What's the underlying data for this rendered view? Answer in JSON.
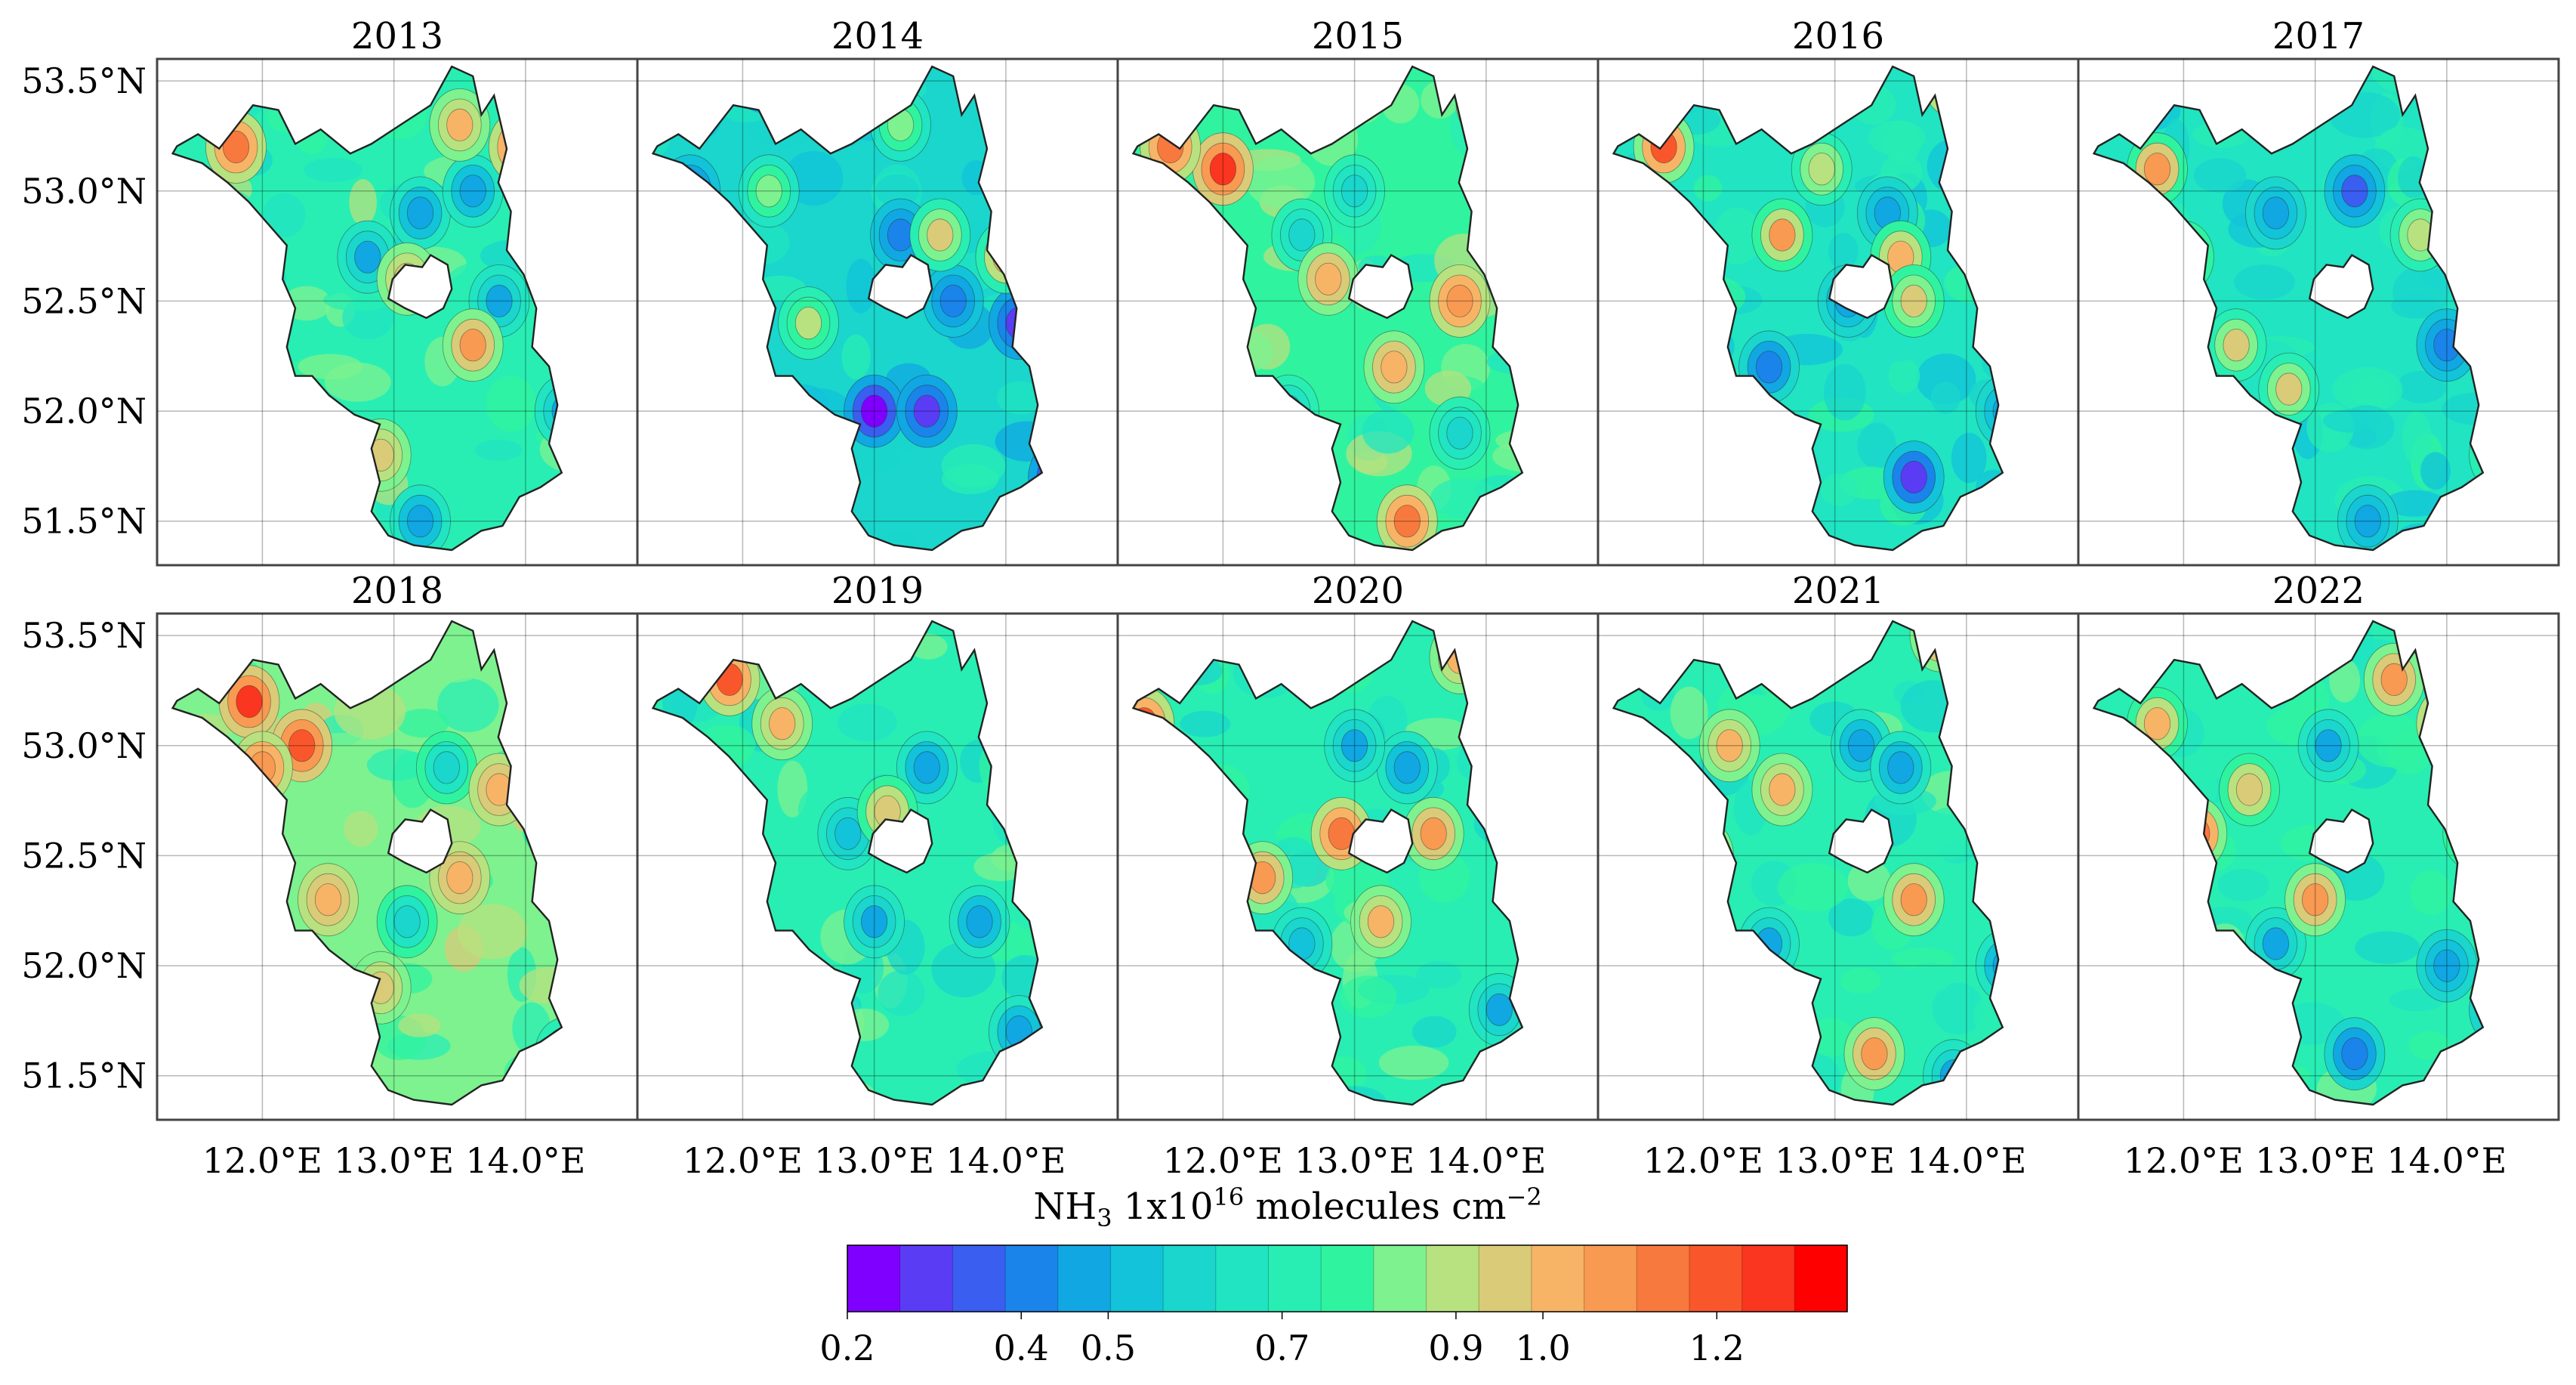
{
  "chart_data": {
    "type": "heatmap",
    "title": "",
    "colorbar": {
      "label_main": "NH",
      "label_sub": "3",
      "label_coef": " 1x10",
      "label_exp": "16",
      "label_unit": " molecules cm",
      "label_unit_exp": "−2",
      "ticks": [
        "0.2",
        "0.4",
        "0.5",
        "0.7",
        "0.9",
        "1.0",
        "1.2"
      ],
      "tick_values": [
        0.2,
        0.4,
        0.5,
        0.7,
        0.9,
        1.0,
        1.2
      ],
      "range": [
        0.2,
        1.35
      ],
      "colors": [
        "#7f00ff",
        "#5b3cf5",
        "#3a5ef0",
        "#1a84ea",
        "#10a7e3",
        "#12c3d9",
        "#1ad6cc",
        "#20e4c2",
        "#28eeb3",
        "#30f39f",
        "#7df28f",
        "#b7e27f",
        "#d9cb78",
        "#f7b466",
        "#f89a52",
        "#f8793e",
        "#f9572b",
        "#fa3520",
        "#ff0000"
      ]
    },
    "x_ticks": [
      "12.0°E",
      "13.0°E",
      "14.0°E"
    ],
    "y_ticks": [
      "53.5°N",
      "53.0°N",
      "52.5°N",
      "52.0°N",
      "51.5°N"
    ],
    "axis_ranges": {
      "lon": [
        11.2,
        14.85
      ],
      "lat": [
        51.3,
        53.6
      ]
    },
    "panels": [
      {
        "year": "2013",
        "mean": 0.74,
        "hotspots": [
          [
            11.8,
            53.2,
            1.15
          ],
          [
            13.95,
            53.2,
            1.2
          ],
          [
            14.3,
            52.7,
            1.05
          ],
          [
            13.1,
            52.6,
            0.95
          ],
          [
            13.6,
            52.3,
            1.05
          ],
          [
            12.9,
            51.8,
            0.95
          ],
          [
            13.5,
            53.3,
            1.0
          ]
        ],
        "coldspots": [
          [
            13.2,
            52.9,
            0.45
          ],
          [
            13.6,
            53.0,
            0.45
          ],
          [
            13.2,
            51.5,
            0.45
          ],
          [
            12.8,
            52.7,
            0.5
          ],
          [
            14.3,
            52.0,
            0.5
          ],
          [
            13.8,
            52.5,
            0.5
          ]
        ]
      },
      {
        "year": "2014",
        "mean": 0.6,
        "hotspots": [
          [
            13.5,
            52.8,
            0.95
          ],
          [
            12.2,
            53.0,
            0.85
          ],
          [
            14.0,
            52.7,
            1.0
          ],
          [
            12.5,
            52.4,
            0.9
          ],
          [
            13.2,
            53.3,
            0.85
          ]
        ],
        "coldspots": [
          [
            13.0,
            52.0,
            0.25
          ],
          [
            13.4,
            52.0,
            0.3
          ],
          [
            14.4,
            51.7,
            0.25
          ],
          [
            14.1,
            52.4,
            0.3
          ],
          [
            13.2,
            52.8,
            0.4
          ],
          [
            11.6,
            53.0,
            0.45
          ],
          [
            13.6,
            52.5,
            0.4
          ]
        ]
      },
      {
        "year": "2015",
        "mean": 0.78,
        "hotspots": [
          [
            12.0,
            53.1,
            1.25
          ],
          [
            11.6,
            53.2,
            1.15
          ],
          [
            13.8,
            52.5,
            1.1
          ],
          [
            13.4,
            51.5,
            1.15
          ],
          [
            14.0,
            53.4,
            1.05
          ],
          [
            11.9,
            52.5,
            1.1
          ],
          [
            12.8,
            52.6,
            1.0
          ],
          [
            13.3,
            52.2,
            1.0
          ]
        ],
        "coldspots": [
          [
            12.5,
            52.0,
            0.55
          ],
          [
            13.0,
            53.0,
            0.6
          ],
          [
            13.8,
            51.9,
            0.6
          ],
          [
            12.6,
            52.8,
            0.6
          ]
        ]
      },
      {
        "year": "2016",
        "mean": 0.66,
        "hotspots": [
          [
            13.9,
            53.5,
            1.3
          ],
          [
            11.7,
            53.2,
            1.2
          ],
          [
            12.6,
            52.8,
            1.05
          ],
          [
            13.5,
            52.7,
            1.0
          ],
          [
            13.6,
            52.5,
            0.95
          ],
          [
            12.9,
            53.1,
            0.9
          ]
        ],
        "coldspots": [
          [
            13.6,
            51.7,
            0.3
          ],
          [
            12.5,
            52.2,
            0.4
          ],
          [
            13.4,
            52.9,
            0.45
          ],
          [
            14.3,
            52.0,
            0.45
          ],
          [
            13.1,
            52.5,
            0.45
          ]
        ]
      },
      {
        "year": "2017",
        "mean": 0.63,
        "hotspots": [
          [
            11.8,
            53.1,
            1.1
          ],
          [
            12.0,
            52.7,
            1.0
          ],
          [
            12.4,
            52.3,
            0.95
          ],
          [
            14.4,
            51.8,
            0.95
          ],
          [
            13.8,
            52.8,
            0.9
          ],
          [
            12.8,
            52.1,
            0.95
          ]
        ],
        "coldspots": [
          [
            13.3,
            53.0,
            0.35
          ],
          [
            14.0,
            52.3,
            0.4
          ],
          [
            14.6,
            53.3,
            0.35
          ],
          [
            13.4,
            51.5,
            0.45
          ],
          [
            12.7,
            52.9,
            0.45
          ]
        ]
      },
      {
        "year": "2018",
        "mean": 0.82,
        "hotspots": [
          [
            11.9,
            53.2,
            1.25
          ],
          [
            12.3,
            53.0,
            1.2
          ],
          [
            12.0,
            52.9,
            1.1
          ],
          [
            13.5,
            52.4,
            1.0
          ],
          [
            12.5,
            52.3,
            1.0
          ],
          [
            13.8,
            52.8,
            1.0
          ],
          [
            12.9,
            51.9,
            0.95
          ]
        ],
        "coldspots": [
          [
            14.3,
            51.6,
            0.45
          ],
          [
            13.4,
            52.9,
            0.6
          ],
          [
            13.1,
            52.2,
            0.6
          ],
          [
            14.1,
            53.2,
            0.65
          ]
        ]
      },
      {
        "year": "2019",
        "mean": 0.72,
        "hotspots": [
          [
            11.9,
            53.3,
            1.2
          ],
          [
            12.6,
            51.6,
            1.05
          ],
          [
            11.8,
            51.9,
            1.05
          ],
          [
            12.3,
            53.1,
            1.0
          ],
          [
            13.1,
            52.7,
            0.95
          ]
        ],
        "coldspots": [
          [
            13.4,
            52.9,
            0.45
          ],
          [
            13.8,
            52.2,
            0.45
          ],
          [
            14.1,
            51.7,
            0.45
          ],
          [
            13.0,
            52.2,
            0.5
          ],
          [
            12.8,
            52.6,
            0.55
          ]
        ]
      },
      {
        "year": "2020",
        "mean": 0.73,
        "hotspots": [
          [
            11.4,
            53.1,
            1.2
          ],
          [
            12.9,
            52.6,
            1.15
          ],
          [
            13.6,
            52.6,
            1.1
          ],
          [
            12.3,
            52.4,
            1.1
          ],
          [
            13.8,
            53.4,
            1.0
          ],
          [
            11.9,
            51.9,
            1.05
          ],
          [
            13.2,
            52.2,
            1.0
          ]
        ],
        "coldspots": [
          [
            13.4,
            52.9,
            0.45
          ],
          [
            13.0,
            53.0,
            0.5
          ],
          [
            14.1,
            51.8,
            0.5
          ],
          [
            12.6,
            52.1,
            0.55
          ]
        ]
      },
      {
        "year": "2021",
        "mean": 0.72,
        "hotspots": [
          [
            14.1,
            53.2,
            1.1
          ],
          [
            13.8,
            53.5,
            1.05
          ],
          [
            12.0,
            52.5,
            1.1
          ],
          [
            13.3,
            51.6,
            1.05
          ],
          [
            13.6,
            52.3,
            1.05
          ],
          [
            12.6,
            52.8,
            1.0
          ],
          [
            12.2,
            53.0,
            1.0
          ]
        ],
        "coldspots": [
          [
            13.2,
            53.0,
            0.45
          ],
          [
            13.5,
            52.9,
            0.45
          ],
          [
            14.3,
            52.0,
            0.45
          ],
          [
            12.5,
            52.1,
            0.5
          ],
          [
            13.9,
            51.5,
            0.5
          ]
        ]
      },
      {
        "year": "2022",
        "mean": 0.7,
        "hotspots": [
          [
            14.0,
            53.1,
            1.2
          ],
          [
            13.6,
            53.3,
            1.1
          ],
          [
            12.1,
            52.6,
            1.15
          ],
          [
            11.8,
            53.1,
            1.0
          ],
          [
            13.0,
            52.3,
            1.05
          ],
          [
            12.5,
            52.8,
            0.95
          ],
          [
            14.2,
            52.6,
            0.95
          ]
        ],
        "coldspots": [
          [
            13.3,
            51.6,
            0.4
          ],
          [
            14.0,
            52.0,
            0.45
          ],
          [
            13.1,
            53.0,
            0.5
          ],
          [
            12.7,
            52.1,
            0.5
          ],
          [
            14.4,
            51.8,
            0.45
          ]
        ]
      }
    ]
  }
}
